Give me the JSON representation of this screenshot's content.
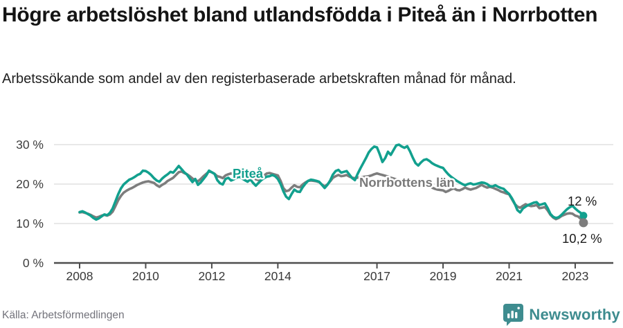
{
  "title": "Högre arbetslöshet bland utlandsfödda i Piteå än i Norrbotten",
  "subtitle": "Arbetssökande som andel av den registerbaserade arbetskraften månad för månad.",
  "source": "Källa: Arbetsförmedlingen",
  "brand": {
    "name": "Newsworthy",
    "color": "#3e8c8f"
  },
  "chart_data": {
    "type": "line",
    "title": "",
    "xlabel": "",
    "ylabel": "",
    "ylim": [
      0,
      30
    ],
    "y_ticks": [
      0,
      10,
      20,
      30
    ],
    "y_tick_labels": [
      "0 %",
      "10 %",
      "20 %",
      "30 %"
    ],
    "x_tick_years": [
      2008,
      2010,
      2012,
      2014,
      2017,
      2019,
      2021,
      2023
    ],
    "x_tick_labels": [
      "2008",
      "2010",
      "2012",
      "2014",
      "2017",
      "2019",
      "2021",
      "2023"
    ],
    "x_range": [
      2008.0,
      2023.25
    ],
    "grid": true,
    "legend_position": "inline-labels",
    "colors": {
      "pitea": "#12a08e",
      "norrbotten": "#7d7d7d",
      "grid": "#e0e0e0",
      "axis": "#4d4d4d",
      "end_label": "#1a1a1a"
    },
    "series": [
      {
        "name": "Piteå",
        "color": "#12a08e",
        "end_label": "12 %",
        "end_value": 12.0,
        "start_year": 2008.0,
        "step_months": 1,
        "values": [
          12.9,
          13.1,
          12.8,
          12.4,
          12.0,
          11.4,
          11.0,
          11.3,
          11.8,
          12.3,
          12.1,
          12.7,
          13.8,
          15.6,
          17.4,
          18.9,
          19.9,
          20.5,
          21.1,
          21.4,
          21.8,
          22.3,
          22.6,
          23.4,
          23.3,
          22.9,
          22.3,
          21.5,
          20.9,
          20.6,
          21.4,
          22.0,
          22.5,
          23.1,
          22.9,
          23.7,
          24.6,
          23.8,
          23.0,
          22.4,
          21.4,
          20.5,
          21.3,
          19.8,
          20.4,
          21.3,
          22.2,
          23.4,
          23.0,
          22.6,
          21.0,
          20.2,
          19.9,
          21.3,
          21.6,
          20.9,
          21.2,
          21.6,
          21.9,
          21.4,
          21.0,
          20.6,
          21.2,
          20.3,
          19.6,
          20.3,
          21.0,
          21.5,
          21.9,
          22.0,
          22.3,
          22.0,
          21.3,
          20.0,
          18.2,
          16.8,
          16.2,
          17.5,
          18.6,
          18.1,
          18.0,
          19.2,
          20.1,
          20.8,
          21.1,
          21.0,
          20.8,
          20.6,
          19.8,
          19.0,
          19.8,
          20.9,
          22.4,
          23.3,
          23.6,
          22.9,
          23.1,
          23.3,
          22.4,
          21.5,
          21.0,
          22.6,
          24.0,
          25.3,
          26.6,
          28.0,
          28.9,
          29.5,
          29.3,
          27.6,
          25.6,
          26.6,
          28.2,
          27.4,
          28.6,
          29.8,
          30.0,
          29.5,
          29.2,
          29.6,
          28.3,
          26.7,
          25.3,
          24.7,
          25.5,
          26.1,
          26.3,
          25.9,
          25.3,
          24.9,
          24.6,
          24.3,
          24.1,
          23.2,
          22.4,
          21.8,
          21.3,
          20.8,
          20.4,
          20.0,
          19.7,
          20.0,
          20.2,
          19.9,
          20.0,
          20.2,
          20.4,
          20.3,
          20.0,
          19.5,
          19.4,
          19.7,
          19.3,
          19.0,
          18.8,
          18.1,
          17.5,
          16.4,
          15.1,
          13.4,
          12.8,
          13.8,
          14.3,
          14.7,
          15.0,
          15.3,
          15.4,
          14.7,
          14.9,
          15.1,
          13.9,
          12.4,
          11.7,
          11.4,
          11.6,
          12.2,
          12.9,
          13.6,
          14.1,
          14.5,
          13.8,
          13.2,
          12.7,
          12.0
        ]
      },
      {
        "name": "Norrbottens län",
        "color": "#7d7d7d",
        "end_label": "10,2 %",
        "end_value": 10.2,
        "start_year": 2008.0,
        "step_months": 1,
        "values": [
          12.8,
          12.9,
          12.7,
          12.5,
          12.2,
          11.8,
          11.5,
          11.7,
          12.0,
          12.2,
          12.0,
          12.3,
          13.0,
          14.4,
          15.9,
          17.0,
          17.8,
          18.3,
          18.7,
          19.0,
          19.4,
          19.8,
          20.1,
          20.4,
          20.6,
          20.7,
          20.5,
          20.3,
          19.7,
          19.3,
          19.8,
          20.2,
          20.8,
          21.2,
          21.6,
          22.3,
          23.0,
          23.2,
          22.8,
          22.5,
          22.0,
          21.4,
          21.0,
          20.7,
          21.3,
          22.0,
          22.6,
          23.2,
          23.0,
          22.6,
          22.0,
          21.8,
          21.5,
          22.2,
          22.5,
          22.7,
          22.5,
          22.4,
          22.6,
          22.8,
          23.0,
          23.1,
          23.3,
          22.4,
          21.2,
          21.0,
          21.6,
          22.2,
          22.7,
          22.8,
          22.6,
          22.4,
          22.2,
          20.8,
          19.0,
          18.2,
          18.4,
          19.1,
          19.7,
          19.3,
          19.2,
          19.9,
          20.4,
          20.8,
          20.9,
          20.8,
          20.7,
          20.5,
          19.9,
          19.4,
          19.9,
          20.7,
          21.6,
          22.0,
          22.3,
          22.0,
          22.1,
          22.3,
          21.9,
          21.6,
          21.5,
          21.6,
          21.7,
          21.8,
          21.9,
          22.0,
          22.2,
          22.5,
          22.7,
          22.5,
          22.3,
          22.1,
          21.9,
          21.6,
          21.4,
          21.2,
          20.9,
          20.6,
          20.4,
          20.2,
          20.0,
          19.9,
          19.8,
          20.0,
          20.3,
          20.5,
          20.2,
          19.8,
          19.1,
          18.8,
          18.6,
          18.5,
          18.4,
          18.0,
          18.3,
          18.7,
          18.9,
          18.5,
          18.4,
          18.7,
          19.1,
          18.8,
          18.6,
          18.8,
          19.0,
          19.4,
          19.8,
          19.4,
          19.1,
          19.3,
          19.1,
          18.8,
          18.5,
          18.1,
          17.9,
          17.6,
          17.4,
          16.2,
          15.0,
          14.3,
          14.0,
          14.5,
          14.9,
          14.6,
          14.4,
          14.5,
          14.7,
          13.9,
          14.0,
          14.2,
          13.3,
          12.2,
          11.5,
          11.1,
          11.4,
          11.9,
          12.2,
          12.5,
          12.6,
          12.5,
          12.0,
          11.8,
          11.2,
          10.2
        ]
      }
    ]
  }
}
